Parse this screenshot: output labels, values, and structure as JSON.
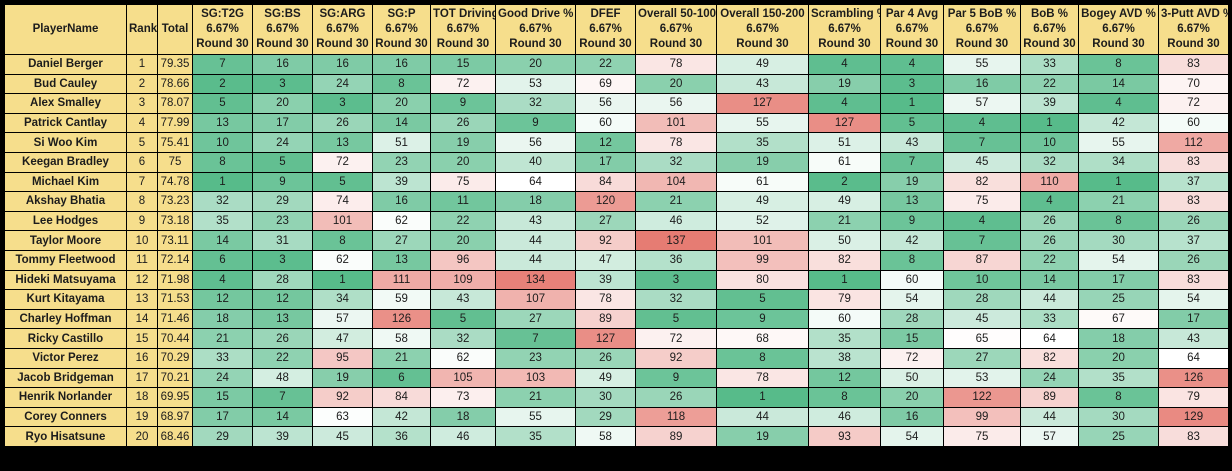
{
  "table": {
    "sub_headers": {
      "weight": "6.67%",
      "round": "Round 30"
    },
    "columns": [
      {
        "label": "PlayerName",
        "type": "text"
      },
      {
        "label": "Rank",
        "type": "text"
      },
      {
        "label": "Total",
        "type": "text"
      },
      {
        "label": "SG:T2G",
        "type": "stat"
      },
      {
        "label": "SG:BS",
        "type": "stat"
      },
      {
        "label": "SG:ARG",
        "type": "stat"
      },
      {
        "label": "SG:P",
        "type": "stat"
      },
      {
        "label": "TOT Driving",
        "type": "stat"
      },
      {
        "label": "Good Drive %",
        "type": "stat"
      },
      {
        "label": "DFEF",
        "type": "stat"
      },
      {
        "label": "Overall 50-100",
        "type": "stat"
      },
      {
        "label": "Overall 150-200",
        "type": "stat"
      },
      {
        "label": "Scrambling %",
        "type": "stat"
      },
      {
        "label": "Par 4 Avg",
        "type": "stat"
      },
      {
        "label": "Par 5 BoB %",
        "type": "stat"
      },
      {
        "label": "BoB %",
        "type": "stat"
      },
      {
        "label": "Bogey AVD %",
        "type": "stat"
      },
      {
        "label": "3-Putt AVD %",
        "type": "stat"
      }
    ],
    "rows": [
      {
        "player": "Daniel Berger",
        "rank": 1,
        "total": "79.35",
        "stats": [
          7,
          16,
          16,
          16,
          15,
          20,
          22,
          78,
          49,
          4,
          4,
          55,
          33,
          8,
          83
        ]
      },
      {
        "player": "Bud Cauley",
        "rank": 2,
        "total": "78.66",
        "stats": [
          2,
          3,
          24,
          8,
          72,
          53,
          69,
          20,
          43,
          19,
          3,
          16,
          22,
          14,
          70
        ]
      },
      {
        "player": "Alex Smalley",
        "rank": 3,
        "total": "78.07",
        "stats": [
          5,
          20,
          3,
          20,
          9,
          32,
          56,
          56,
          127,
          4,
          1,
          57,
          39,
          4,
          72
        ]
      },
      {
        "player": "Patrick Cantlay",
        "rank": 4,
        "total": "77.99",
        "stats": [
          13,
          17,
          26,
          14,
          26,
          9,
          60,
          101,
          55,
          127,
          5,
          4,
          1,
          42,
          60
        ]
      },
      {
        "player": "Si Woo Kim",
        "rank": 5,
        "total": "75.41",
        "stats": [
          10,
          24,
          13,
          51,
          19,
          56,
          12,
          78,
          35,
          51,
          43,
          7,
          10,
          55,
          112
        ]
      },
      {
        "player": "Keegan Bradley",
        "rank": 6,
        "total": "75",
        "stats": [
          8,
          5,
          72,
          23,
          20,
          40,
          17,
          32,
          19,
          61,
          7,
          45,
          32,
          34,
          83
        ]
      },
      {
        "player": "Michael Kim",
        "rank": 7,
        "total": "74.78",
        "stats": [
          1,
          9,
          5,
          39,
          75,
          64,
          84,
          104,
          61,
          2,
          19,
          82,
          110,
          1,
          37
        ]
      },
      {
        "player": "Akshay Bhatia",
        "rank": 8,
        "total": "73.23",
        "stats": [
          32,
          29,
          74,
          16,
          11,
          18,
          120,
          21,
          49,
          49,
          13,
          75,
          4,
          21,
          83
        ]
      },
      {
        "player": "Lee Hodges",
        "rank": 9,
        "total": "73.18",
        "stats": [
          35,
          23,
          101,
          62,
          22,
          43,
          27,
          46,
          52,
          21,
          9,
          4,
          26,
          8,
          26
        ]
      },
      {
        "player": "Taylor Moore",
        "rank": 10,
        "total": "73.11",
        "stats": [
          14,
          31,
          8,
          27,
          20,
          44,
          92,
          137,
          101,
          50,
          42,
          7,
          26,
          30,
          37
        ]
      },
      {
        "player": "Tommy Fleetwood",
        "rank": 11,
        "total": "72.14",
        "stats": [
          6,
          3,
          62,
          13,
          96,
          44,
          47,
          36,
          99,
          82,
          8,
          87,
          22,
          54,
          26
        ]
      },
      {
        "player": "Hideki Matsuyama",
        "rank": 12,
        "total": "71.98",
        "stats": [
          4,
          28,
          1,
          111,
          109,
          134,
          39,
          3,
          80,
          1,
          60,
          10,
          14,
          17,
          83
        ]
      },
      {
        "player": "Kurt Kitayama",
        "rank": 13,
        "total": "71.53",
        "stats": [
          12,
          12,
          34,
          59,
          43,
          107,
          78,
          32,
          5,
          79,
          54,
          28,
          44,
          25,
          54
        ]
      },
      {
        "player": "Charley Hoffman",
        "rank": 14,
        "total": "71.46",
        "stats": [
          18,
          13,
          57,
          126,
          5,
          27,
          89,
          5,
          9,
          60,
          28,
          45,
          33,
          67,
          17
        ]
      },
      {
        "player": "Ricky Castillo",
        "rank": 15,
        "total": "70.44",
        "stats": [
          21,
          26,
          47,
          58,
          32,
          7,
          127,
          72,
          68,
          35,
          15,
          65,
          64,
          18,
          43
        ]
      },
      {
        "player": "Victor Perez",
        "rank": 16,
        "total": "70.29",
        "stats": [
          33,
          22,
          95,
          21,
          62,
          23,
          26,
          92,
          8,
          38,
          72,
          27,
          82,
          20,
          64
        ]
      },
      {
        "player": "Jacob Bridgeman",
        "rank": 17,
        "total": "70.21",
        "stats": [
          24,
          48,
          19,
          6,
          105,
          103,
          49,
          9,
          78,
          12,
          50,
          53,
          24,
          35,
          126
        ]
      },
      {
        "player": "Henrik Norlander",
        "rank": 18,
        "total": "69.95",
        "stats": [
          15,
          7,
          92,
          84,
          73,
          21,
          30,
          26,
          1,
          8,
          20,
          122,
          89,
          8,
          79
        ]
      },
      {
        "player": "Corey Conners",
        "rank": 19,
        "total": "68.97",
        "stats": [
          17,
          14,
          63,
          42,
          18,
          55,
          29,
          118,
          44,
          46,
          16,
          99,
          44,
          30,
          129
        ]
      },
      {
        "player": "Ryo Hisatsune",
        "rank": 20,
        "total": "68.46",
        "stats": [
          29,
          39,
          45,
          36,
          46,
          35,
          58,
          89,
          19,
          93,
          54,
          75,
          57,
          25,
          83
        ]
      }
    ]
  },
  "colors": {
    "header_background": "#f6de8c",
    "border": "#000000",
    "text": "#1c1c1c",
    "scale": {
      "min_value": 1,
      "mid_value": 64,
      "max_value": 137,
      "min_color": "#57bb8a",
      "mid_color": "#ffffff",
      "max_color": "#e67c73"
    }
  }
}
